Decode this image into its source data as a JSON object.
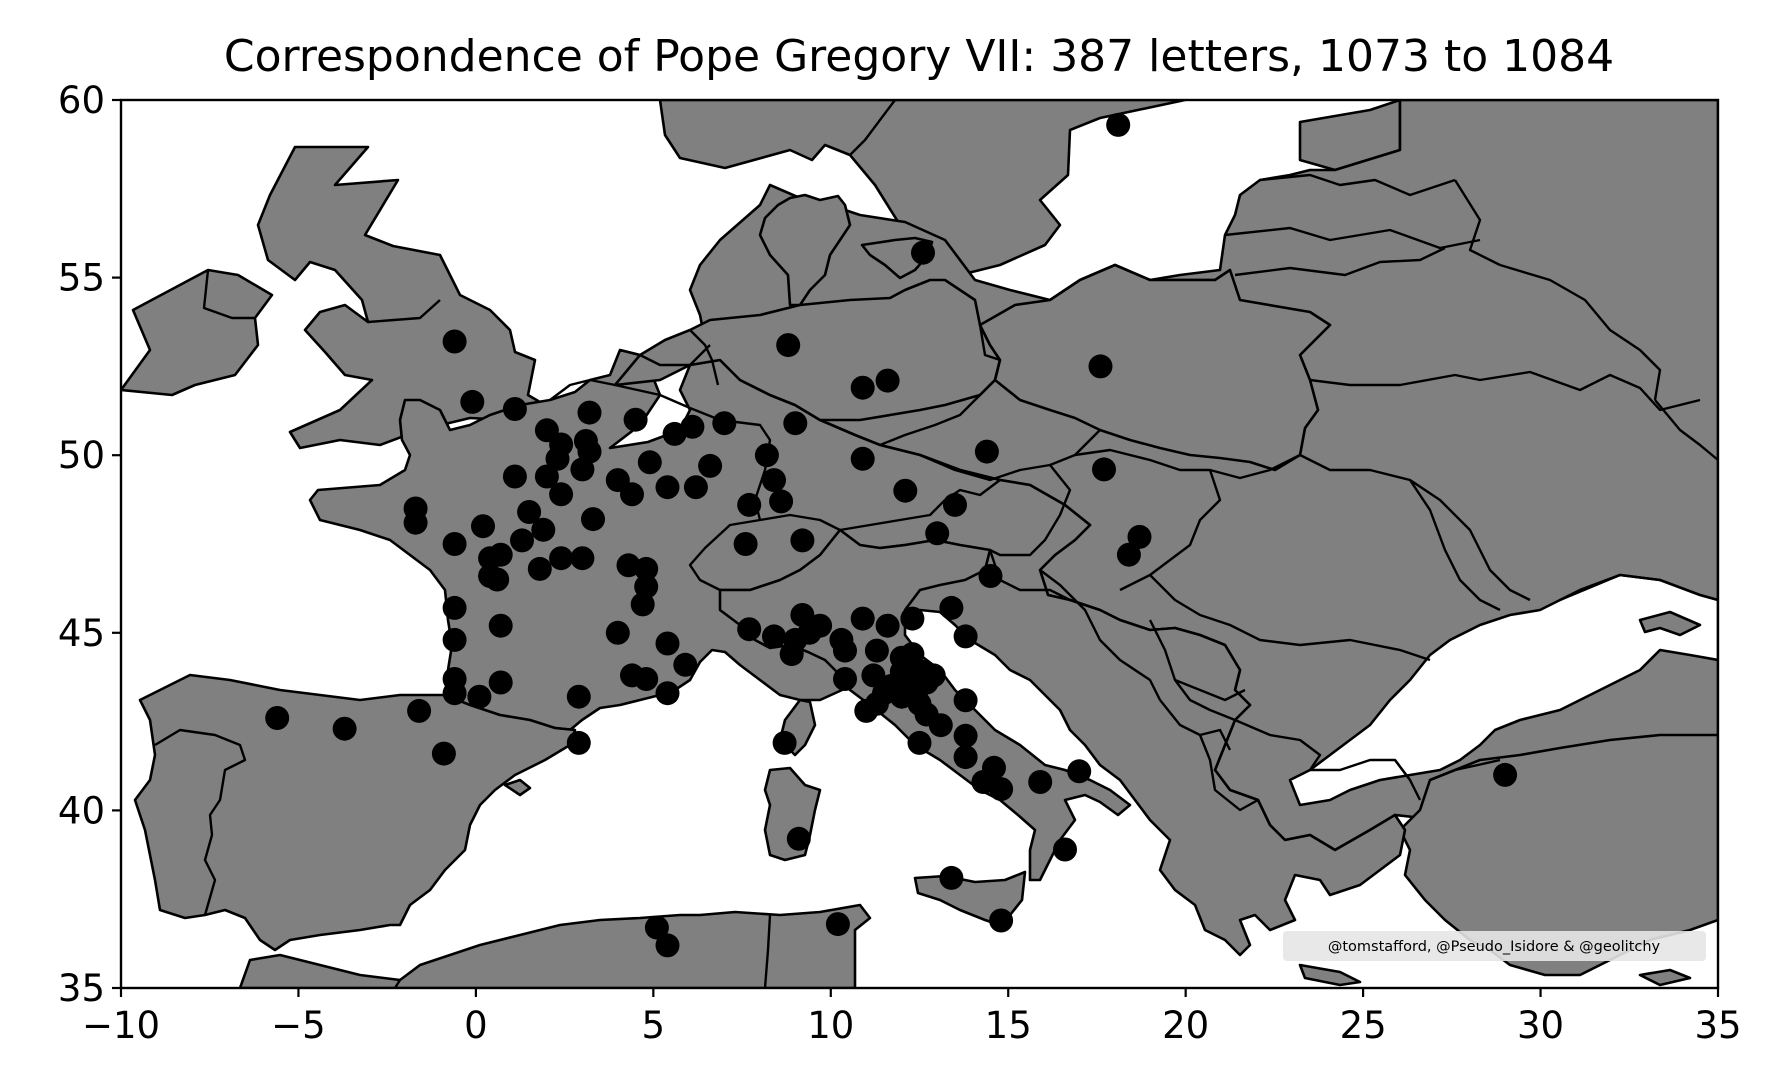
{
  "title": "Correspondence of Pope Gregory VII: 387 letters, 1073 to 1084",
  "credit": "@tomstafford, @Pseudo_Isidore & @geolitchy",
  "colors": {
    "land": "#808080",
    "border": "#000000",
    "sea": "#ffffff",
    "point": "#000000",
    "credit_box": "#e6e6e6"
  },
  "chart_data": {
    "type": "scatter",
    "title": "Correspondence of Pope Gregory VII: 387 letters, 1073 to 1084",
    "xlim": [
      -10,
      35
    ],
    "ylim": [
      35,
      60
    ],
    "x_ticks": [
      -10,
      -5,
      0,
      5,
      10,
      15,
      20,
      25,
      30,
      35
    ],
    "x_tick_labels": [
      "−10",
      "−5",
      "0",
      "5",
      "10",
      "15",
      "20",
      "25",
      "30",
      "35"
    ],
    "y_ticks": [
      35,
      40,
      45,
      50,
      55,
      60
    ],
    "y_tick_labels": [
      "35",
      "40",
      "45",
      "50",
      "55",
      "60"
    ],
    "grid": false,
    "points": [
      [
        18.1,
        59.3
      ],
      [
        12.6,
        55.7
      ],
      [
        -0.6,
        53.2
      ],
      [
        8.8,
        53.1
      ],
      [
        17.6,
        52.5
      ],
      [
        11.6,
        52.1
      ],
      [
        10.9,
        51.9
      ],
      [
        -0.1,
        51.5
      ],
      [
        1.1,
        51.3
      ],
      [
        3.2,
        51.2
      ],
      [
        4.5,
        51.0
      ],
      [
        7.0,
        50.9
      ],
      [
        9.0,
        50.9
      ],
      [
        5.6,
        50.6
      ],
      [
        6.1,
        50.8
      ],
      [
        2.0,
        50.7
      ],
      [
        2.4,
        50.3
      ],
      [
        3.1,
        50.4
      ],
      [
        3.2,
        50.1
      ],
      [
        14.4,
        50.1
      ],
      [
        8.2,
        50.0
      ],
      [
        10.9,
        49.9
      ],
      [
        2.3,
        49.9
      ],
      [
        4.9,
        49.8
      ],
      [
        6.6,
        49.7
      ],
      [
        17.7,
        49.6
      ],
      [
        3.0,
        49.6
      ],
      [
        2.0,
        49.4
      ],
      [
        4.0,
        49.3
      ],
      [
        1.1,
        49.4
      ],
      [
        8.4,
        49.3
      ],
      [
        5.4,
        49.1
      ],
      [
        6.2,
        49.1
      ],
      [
        12.1,
        49.0
      ],
      [
        2.4,
        48.9
      ],
      [
        4.4,
        48.9
      ],
      [
        8.6,
        48.7
      ],
      [
        7.7,
        48.6
      ],
      [
        13.5,
        48.6
      ],
      [
        -1.7,
        48.1
      ],
      [
        -1.7,
        48.5
      ],
      [
        1.5,
        48.4
      ],
      [
        3.3,
        48.2
      ],
      [
        0.2,
        48.0
      ],
      [
        1.9,
        47.9
      ],
      [
        13.0,
        47.8
      ],
      [
        18.7,
        47.7
      ],
      [
        9.2,
        47.6
      ],
      [
        1.3,
        47.6
      ],
      [
        -0.6,
        47.5
      ],
      [
        7.6,
        47.5
      ],
      [
        0.7,
        47.2
      ],
      [
        0.4,
        47.1
      ],
      [
        2.4,
        47.1
      ],
      [
        3.0,
        47.1
      ],
      [
        18.4,
        47.2
      ],
      [
        4.3,
        46.9
      ],
      [
        4.8,
        46.8
      ],
      [
        1.8,
        46.8
      ],
      [
        14.5,
        46.6
      ],
      [
        0.4,
        46.6
      ],
      [
        0.6,
        46.5
      ],
      [
        4.8,
        46.3
      ],
      [
        4.7,
        45.8
      ],
      [
        -0.6,
        45.7
      ],
      [
        13.4,
        45.7
      ],
      [
        9.2,
        45.5
      ],
      [
        10.9,
        45.4
      ],
      [
        12.3,
        45.4
      ],
      [
        0.7,
        45.2
      ],
      [
        9.7,
        45.2
      ],
      [
        11.6,
        45.2
      ],
      [
        9.4,
        45.0
      ],
      [
        7.7,
        45.1
      ],
      [
        4.0,
        45.0
      ],
      [
        8.4,
        44.9
      ],
      [
        13.8,
        44.9
      ],
      [
        -0.6,
        44.8
      ],
      [
        9.0,
        44.8
      ],
      [
        5.4,
        44.7
      ],
      [
        10.3,
        44.8
      ],
      [
        10.4,
        44.5
      ],
      [
        8.9,
        44.4
      ],
      [
        11.3,
        44.5
      ],
      [
        12.0,
        44.3
      ],
      [
        12.3,
        44.4
      ],
      [
        5.9,
        44.1
      ],
      [
        12.6,
        43.9
      ],
      [
        11.9,
        43.6
      ],
      [
        11.2,
        43.8
      ],
      [
        12.0,
        43.9
      ],
      [
        12.9,
        43.8
      ],
      [
        4.4,
        43.8
      ],
      [
        -0.6,
        43.7
      ],
      [
        4.8,
        43.7
      ],
      [
        10.4,
        43.7
      ],
      [
        0.7,
        43.6
      ],
      [
        11.7,
        43.5
      ],
      [
        12.2,
        43.5
      ],
      [
        12.4,
        43.3
      ],
      [
        12.7,
        43.6
      ],
      [
        11.5,
        43.3
      ],
      [
        12.0,
        43.2
      ],
      [
        -0.6,
        43.3
      ],
      [
        0.1,
        43.2
      ],
      [
        5.4,
        43.3
      ],
      [
        11.3,
        43.0
      ],
      [
        2.9,
        43.2
      ],
      [
        12.5,
        43.0
      ],
      [
        11.0,
        42.8
      ],
      [
        -5.6,
        42.6
      ],
      [
        -1.6,
        42.8
      ],
      [
        12.7,
        42.7
      ],
      [
        13.8,
        43.1
      ],
      [
        -3.7,
        42.3
      ],
      [
        13.1,
        42.4
      ],
      [
        2.9,
        41.9
      ],
      [
        8.7,
        41.9
      ],
      [
        12.5,
        41.9
      ],
      [
        13.8,
        42.1
      ],
      [
        -0.9,
        41.6
      ],
      [
        13.8,
        41.5
      ],
      [
        14.6,
        41.2
      ],
      [
        17.0,
        41.1
      ],
      [
        29.0,
        41.0
      ],
      [
        14.3,
        40.8
      ],
      [
        14.8,
        40.6
      ],
      [
        15.9,
        40.8
      ],
      [
        9.1,
        39.2
      ],
      [
        16.6,
        38.9
      ],
      [
        13.4,
        38.1
      ],
      [
        14.8,
        36.9
      ],
      [
        5.1,
        36.7
      ],
      [
        10.2,
        36.8
      ],
      [
        5.4,
        36.2
      ]
    ]
  }
}
